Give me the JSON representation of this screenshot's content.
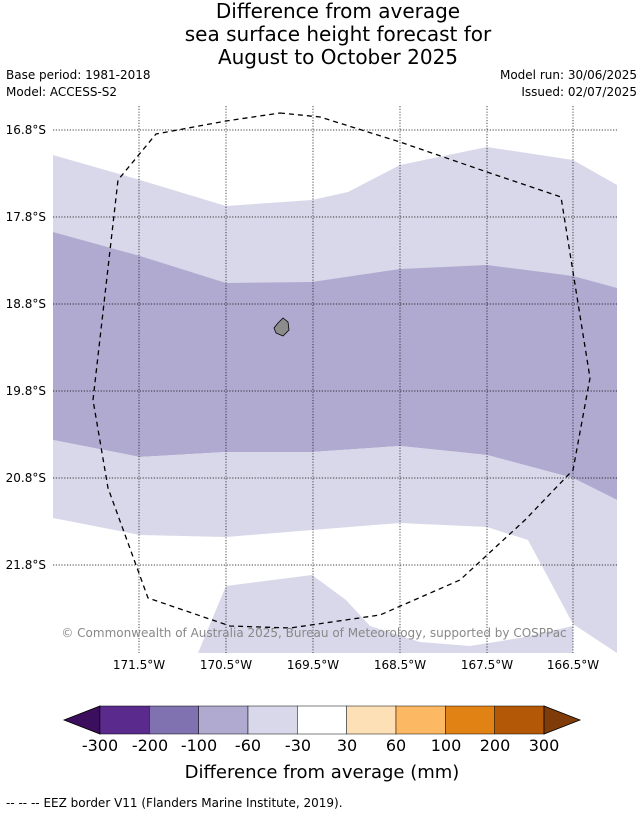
{
  "title": {
    "line1": "Difference from average",
    "line2": "sea surface height forecast for",
    "line3": "August to October 2025"
  },
  "meta": {
    "base_period": "Base period: 1981-2018",
    "model": "Model: ACCESS-S2",
    "model_run": "Model run: 30/06/2025",
    "issued": "Issued: 02/07/2025"
  },
  "map": {
    "lat_labels": [
      "16.8°S",
      "17.8°S",
      "18.8°S",
      "19.8°S",
      "20.8°S",
      "21.8°S"
    ],
    "lon_labels": [
      "171.5°W",
      "170.5°W",
      "169.5°W",
      "168.5°W",
      "167.5°W",
      "166.5°W"
    ],
    "copyright": "© Commonwealth of Australia 2025, Bureau of Meteorology, supported by COSPPac",
    "colors": {
      "band_light": "#d8d8ea",
      "band_mid": "#b0aad1",
      "island": "#8c8c8c",
      "land_outline": "#000000"
    }
  },
  "colorbar": {
    "title": "Difference from average (mm)",
    "tick_labels": [
      "-300",
      "-200",
      "-100",
      "-60",
      "-30",
      "30",
      "60",
      "100",
      "200",
      "300"
    ],
    "bins": [
      {
        "color": "#5b2a8d"
      },
      {
        "color": "#8072b0"
      },
      {
        "color": "#b0aad1"
      },
      {
        "color": "#d8d8ea"
      },
      {
        "color": "#ffffff"
      },
      {
        "color": "#fee0b6"
      },
      {
        "color": "#fdb863"
      },
      {
        "color": "#e08214"
      },
      {
        "color": "#b35806"
      }
    ],
    "extend_low_color": "#3b0f5e",
    "extend_high_color": "#7f3b08"
  },
  "footer": {
    "legend_symbol": "--  --  --",
    "legend_text": "EEZ border V11 (Flanders Marine Institute, 2019)."
  }
}
